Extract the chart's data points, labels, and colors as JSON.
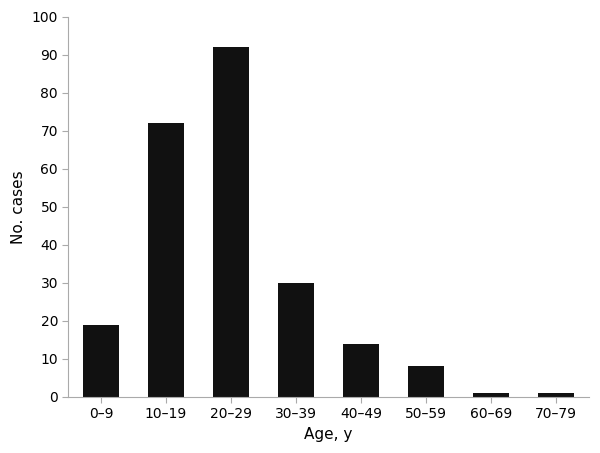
{
  "categories": [
    "0–9",
    "10–19",
    "20–29",
    "30–39",
    "40–49",
    "50–59",
    "60–69",
    "70–79"
  ],
  "values": [
    19,
    72,
    92,
    30,
    14,
    8,
    1,
    1
  ],
  "bar_color": "#111111",
  "xlabel": "Age, y",
  "ylabel": "No. cases",
  "ylim": [
    0,
    100
  ],
  "yticks": [
    0,
    10,
    20,
    30,
    40,
    50,
    60,
    70,
    80,
    90,
    100
  ],
  "background_color": "#ffffff",
  "bar_edge_color": "#111111",
  "xlabel_fontsize": 11,
  "ylabel_fontsize": 11,
  "tick_fontsize": 10,
  "bar_width": 0.55,
  "spine_color": "#aaaaaa"
}
